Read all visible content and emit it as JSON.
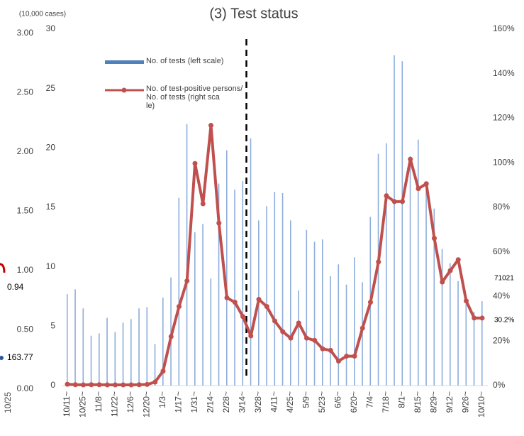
{
  "chart_data": {
    "type": "bar_line",
    "title": "(3) Test status",
    "y_label": "(10,000 cases)",
    "categories": [
      "10/11~",
      null,
      "10/25~",
      null,
      "11/8~",
      null,
      "11/22~",
      null,
      "12/6~",
      null,
      "12/20~",
      null,
      "1/3~",
      null,
      "1/17~",
      null,
      "1/31~",
      null,
      "2/14~",
      null,
      "2/28~",
      null,
      "3/14~",
      null,
      "3/28~",
      null,
      "4/11~",
      null,
      "4/25~",
      null,
      "5/9~",
      null,
      "5/23~",
      null,
      "6/6~",
      null,
      "6/20~",
      null,
      "7/4~",
      null,
      "7/18~",
      null,
      "8/1~",
      null,
      "8/15~",
      null,
      "8/29~",
      null,
      "9/12~",
      null,
      "9/26~",
      null,
      "10/10~"
    ],
    "series": [
      {
        "name": "No. of tests (left scale)",
        "color": "#8eaedb",
        "kind": "bar",
        "values": [
          7.7,
          8.1,
          6.5,
          4.2,
          4.4,
          5.7,
          4.5,
          5.3,
          5.6,
          6.5,
          6.6,
          3.5,
          7.4,
          9.1,
          15.8,
          22,
          12.9,
          13.6,
          9,
          17,
          19.8,
          16.5,
          17.2,
          20.8,
          13.9,
          15.1,
          16.3,
          16.2,
          13.9,
          8,
          13.1,
          12.1,
          12.3,
          9.2,
          10.2,
          8.5,
          10.8,
          8.7,
          14.2,
          19.5,
          20.4,
          27.8,
          27.3,
          19.3,
          20.7,
          16.9,
          14.9,
          11.5,
          10.3,
          8.8,
          7.4,
          6.2,
          7.1
        ]
      },
      {
        "name": "No. of test-positive persons/No. of tests (right scale)",
        "color": "#c0504d",
        "kind": "line",
        "axis": "y2",
        "values": [
          0.6,
          0.4,
          0.3,
          0.4,
          0.4,
          0.3,
          0.3,
          0.3,
          0.3,
          0.4,
          0.5,
          1.6,
          6.5,
          22,
          35.5,
          47,
          99.7,
          81.6,
          116.8,
          72.9,
          39.4,
          37.4,
          31,
          22.3,
          38.7,
          35.5,
          29,
          24.2,
          21.3,
          28.1,
          21.3,
          20.3,
          16.5,
          15.8,
          11,
          13.2,
          13.2,
          25.8,
          37.4,
          55.5,
          85.2,
          82.6,
          82.6,
          101.6,
          88.4,
          90.6,
          66.1,
          46.5,
          51.6,
          56.5,
          38,
          30.3,
          30.3
        ]
      }
    ],
    "ylim": [
      0,
      30
    ],
    "yticks": [
      0,
      5,
      10,
      15,
      20,
      25,
      30
    ],
    "y2lim": [
      0,
      160
    ],
    "y2ticks": [
      {
        "value": 0,
        "label": "0%"
      },
      {
        "value": 20,
        "label": "20%"
      },
      {
        "value": 40,
        "label": "40%"
      },
      {
        "value": 60,
        "label": "60%"
      },
      {
        "value": 80,
        "label": "80%"
      },
      {
        "value": 100,
        "label": "100%"
      },
      {
        "value": 120,
        "label": "120%"
      },
      {
        "value": 140,
        "label": "140%"
      },
      {
        "value": 160,
        "label": "160%"
      }
    ],
    "outer_ticks": [
      {
        "value": 0,
        "label": "0.00"
      },
      {
        "value": 0.5,
        "label": "0.50"
      },
      {
        "value": 1,
        "label": "1.00"
      },
      {
        "value": 1.5,
        "label": "1.50"
      },
      {
        "value": 2,
        "label": "2.00"
      },
      {
        "value": 2.5,
        "label": "2.50"
      },
      {
        "value": 3,
        "label": "3.00"
      }
    ],
    "outer_lim": [
      0,
      3.1
    ],
    "annotations": [
      "0.94",
      "163.77",
      "71021",
      "30.2%",
      "10/25"
    ],
    "divider_index": 22,
    "legend": "top-left"
  }
}
